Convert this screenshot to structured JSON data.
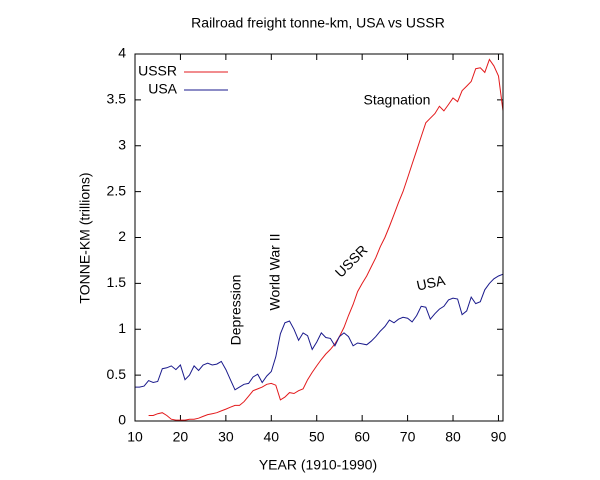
{
  "chart_data": {
    "type": "line",
    "title": "Railroad freight tonne-km, USA vs USSR",
    "xlabel": "YEAR (1910-1990)",
    "ylabel": "TONNE-KM (trillions)",
    "xlim": [
      10,
      91
    ],
    "ylim": [
      0,
      4
    ],
    "xticks": [
      10,
      20,
      30,
      40,
      50,
      60,
      70,
      80,
      90
    ],
    "yticks": [
      0,
      0.5,
      1,
      1.5,
      2,
      2.5,
      3,
      3.5,
      4
    ],
    "legend": "top-left",
    "annotations": [
      "Depression",
      "World War II",
      "USSR",
      "USA",
      "Stagnation"
    ],
    "x": [
      10,
      11,
      12,
      13,
      14,
      15,
      16,
      17,
      18,
      19,
      20,
      21,
      22,
      23,
      24,
      25,
      26,
      27,
      28,
      29,
      30,
      31,
      32,
      33,
      34,
      35,
      36,
      37,
      38,
      39,
      40,
      41,
      42,
      43,
      44,
      45,
      46,
      47,
      48,
      49,
      50,
      51,
      52,
      53,
      54,
      55,
      56,
      57,
      58,
      59,
      60,
      61,
      62,
      63,
      64,
      65,
      66,
      67,
      68,
      69,
      70,
      71,
      72,
      73,
      74,
      75,
      76,
      77,
      78,
      79,
      80,
      81,
      82,
      83,
      84,
      85,
      86,
      87,
      88,
      89,
      90,
      91
    ],
    "series": [
      {
        "name": "USSR",
        "color": "#e31a1c",
        "values": [
          null,
          null,
          null,
          0.06,
          0.06,
          0.08,
          0.09,
          0.06,
          0.02,
          0.01,
          0.01,
          0.01,
          0.02,
          0.02,
          0.03,
          0.05,
          0.07,
          0.08,
          0.09,
          0.11,
          0.13,
          0.15,
          0.17,
          0.17,
          0.21,
          0.27,
          0.33,
          0.35,
          0.37,
          0.4,
          0.41,
          0.39,
          0.23,
          0.26,
          0.31,
          0.3,
          0.33,
          0.35,
          0.45,
          0.53,
          0.6,
          0.67,
          0.73,
          0.78,
          0.84,
          0.92,
          1.02,
          1.15,
          1.27,
          1.41,
          1.5,
          1.58,
          1.68,
          1.78,
          1.9,
          2.0,
          2.12,
          2.25,
          2.38,
          2.5,
          2.65,
          2.8,
          2.95,
          3.1,
          3.25,
          3.3,
          3.35,
          3.43,
          3.38,
          3.45,
          3.52,
          3.48,
          3.6,
          3.65,
          3.7,
          3.84,
          3.85,
          3.8,
          3.94,
          3.87,
          3.76,
          3.38
        ]
      },
      {
        "name": "USA",
        "color": "#1a1a8c",
        "values": [
          0.37,
          0.37,
          0.38,
          0.44,
          0.42,
          0.43,
          0.57,
          0.58,
          0.6,
          0.56,
          0.61,
          0.45,
          0.5,
          0.6,
          0.55,
          0.61,
          0.63,
          0.61,
          0.62,
          0.65,
          0.56,
          0.45,
          0.34,
          0.37,
          0.4,
          0.41,
          0.48,
          0.51,
          0.42,
          0.49,
          0.54,
          0.7,
          0.95,
          1.07,
          1.09,
          1.0,
          0.88,
          0.96,
          0.93,
          0.78,
          0.86,
          0.96,
          0.91,
          0.9,
          0.82,
          0.92,
          0.96,
          0.92,
          0.82,
          0.85,
          0.84,
          0.83,
          0.87,
          0.92,
          0.98,
          1.03,
          1.1,
          1.07,
          1.11,
          1.13,
          1.12,
          1.08,
          1.15,
          1.25,
          1.24,
          1.11,
          1.17,
          1.22,
          1.25,
          1.32,
          1.34,
          1.33,
          1.16,
          1.2,
          1.35,
          1.28,
          1.3,
          1.43,
          1.5,
          1.55,
          1.58,
          1.6
        ]
      }
    ]
  }
}
